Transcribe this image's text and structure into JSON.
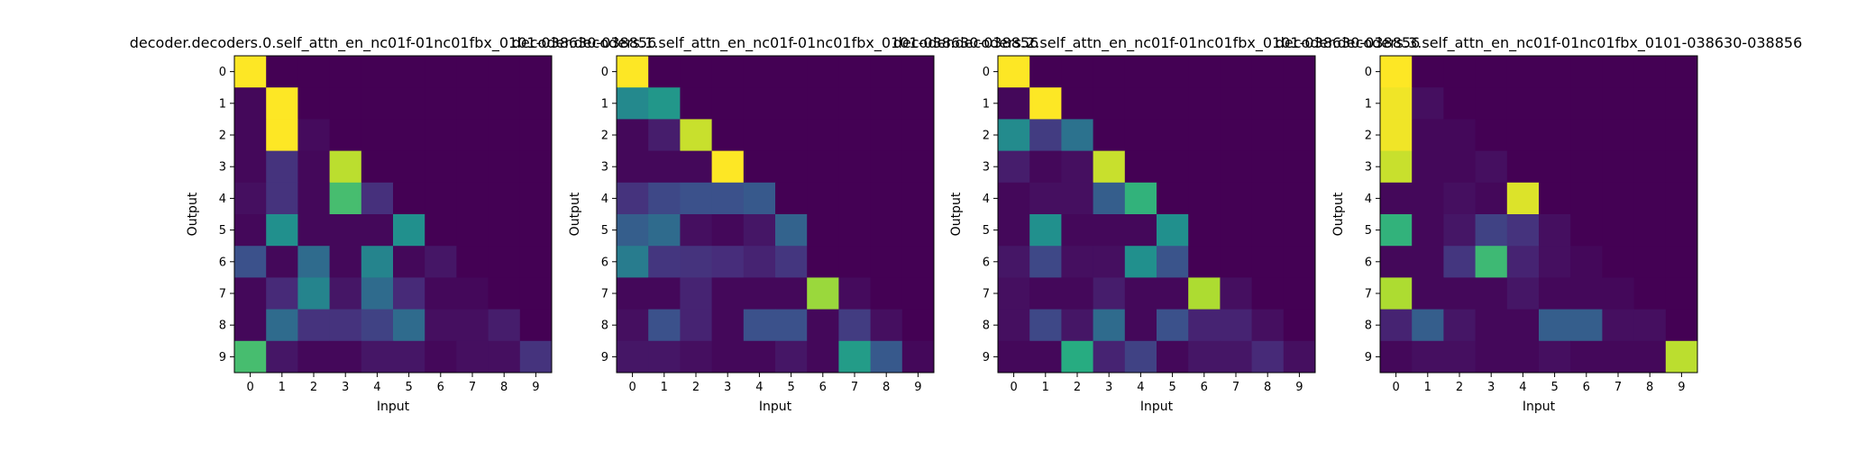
{
  "chart_data": [
    {
      "type": "heatmap",
      "title": "decoder.decoders.0.self_attn_en_nc01f-01nc01fbx_0101-038630-038856",
      "xlabel": "Input",
      "ylabel": "Output",
      "x_ticks": [
        "0",
        "1",
        "2",
        "3",
        "4",
        "5",
        "6",
        "7",
        "8",
        "9"
      ],
      "y_ticks": [
        "0",
        "1",
        "2",
        "3",
        "4",
        "5",
        "6",
        "7",
        "8",
        "9"
      ],
      "colormap": "viridis",
      "vrange": [
        0,
        1
      ],
      "values": [
        [
          1.0,
          0.0,
          0.0,
          0.0,
          0.0,
          0.0,
          0.0,
          0.0,
          0.0,
          0.0
        ],
        [
          0.02,
          1.0,
          0.0,
          0.0,
          0.0,
          0.0,
          0.0,
          0.0,
          0.0,
          0.0
        ],
        [
          0.02,
          1.0,
          0.03,
          0.0,
          0.0,
          0.0,
          0.0,
          0.0,
          0.0,
          0.0
        ],
        [
          0.02,
          0.15,
          0.02,
          0.9,
          0.0,
          0.0,
          0.0,
          0.0,
          0.0,
          0.0
        ],
        [
          0.04,
          0.15,
          0.02,
          0.7,
          0.14,
          0.0,
          0.0,
          0.0,
          0.0,
          0.0
        ],
        [
          0.02,
          0.5,
          0.02,
          0.02,
          0.02,
          0.5,
          0.0,
          0.0,
          0.0,
          0.0
        ],
        [
          0.25,
          0.02,
          0.35,
          0.02,
          0.45,
          0.02,
          0.06,
          0.0,
          0.0,
          0.0
        ],
        [
          0.02,
          0.12,
          0.45,
          0.06,
          0.35,
          0.12,
          0.02,
          0.02,
          0.0,
          0.0
        ],
        [
          0.02,
          0.35,
          0.15,
          0.15,
          0.2,
          0.35,
          0.04,
          0.04,
          0.08,
          0.0
        ],
        [
          0.7,
          0.06,
          0.02,
          0.02,
          0.06,
          0.06,
          0.02,
          0.04,
          0.04,
          0.15
        ]
      ]
    },
    {
      "type": "heatmap",
      "title": "decoder.decoders.1.self_attn_en_nc01f-01nc01fbx_0101-038630-038856",
      "xlabel": "Input",
      "ylabel": "Output",
      "x_ticks": [
        "0",
        "1",
        "2",
        "3",
        "4",
        "5",
        "6",
        "7",
        "8",
        "9"
      ],
      "y_ticks": [
        "0",
        "1",
        "2",
        "3",
        "4",
        "5",
        "6",
        "7",
        "8",
        "9"
      ],
      "colormap": "viridis",
      "vrange": [
        0,
        1
      ],
      "values": [
        [
          1.0,
          0.0,
          0.0,
          0.0,
          0.0,
          0.0,
          0.0,
          0.0,
          0.0,
          0.0
        ],
        [
          0.47,
          0.53,
          0.0,
          0.0,
          0.0,
          0.0,
          0.0,
          0.0,
          0.0,
          0.0
        ],
        [
          0.02,
          0.08,
          0.92,
          0.0,
          0.0,
          0.0,
          0.0,
          0.0,
          0.0,
          0.0
        ],
        [
          0.02,
          0.02,
          0.02,
          1.0,
          0.0,
          0.0,
          0.0,
          0.0,
          0.0,
          0.0
        ],
        [
          0.15,
          0.22,
          0.25,
          0.25,
          0.28,
          0.0,
          0.0,
          0.0,
          0.0,
          0.0
        ],
        [
          0.3,
          0.35,
          0.04,
          0.02,
          0.06,
          0.32,
          0.0,
          0.0,
          0.0,
          0.0
        ],
        [
          0.42,
          0.16,
          0.15,
          0.13,
          0.1,
          0.16,
          0.0,
          0.0,
          0.0,
          0.0
        ],
        [
          0.02,
          0.02,
          0.1,
          0.02,
          0.02,
          0.02,
          0.85,
          0.03,
          0.0,
          0.0
        ],
        [
          0.04,
          0.25,
          0.1,
          0.02,
          0.25,
          0.25,
          0.02,
          0.18,
          0.04,
          0.0
        ],
        [
          0.06,
          0.06,
          0.04,
          0.02,
          0.02,
          0.06,
          0.02,
          0.55,
          0.28,
          0.02
        ]
      ]
    },
    {
      "type": "heatmap",
      "title": "decoder.decoders.2.self_attn_en_nc01f-01nc01fbx_0101-038630-038856",
      "xlabel": "Input",
      "ylabel": "Output",
      "x_ticks": [
        "0",
        "1",
        "2",
        "3",
        "4",
        "5",
        "6",
        "7",
        "8",
        "9"
      ],
      "y_ticks": [
        "0",
        "1",
        "2",
        "3",
        "4",
        "5",
        "6",
        "7",
        "8",
        "9"
      ],
      "colormap": "viridis",
      "vrange": [
        0,
        1
      ],
      "values": [
        [
          1.0,
          0.0,
          0.0,
          0.0,
          0.0,
          0.0,
          0.0,
          0.0,
          0.0,
          0.0
        ],
        [
          0.02,
          1.0,
          0.0,
          0.0,
          0.0,
          0.0,
          0.0,
          0.0,
          0.0,
          0.0
        ],
        [
          0.48,
          0.18,
          0.38,
          0.0,
          0.0,
          0.0,
          0.0,
          0.0,
          0.0,
          0.0
        ],
        [
          0.08,
          0.02,
          0.04,
          0.92,
          0.0,
          0.0,
          0.0,
          0.0,
          0.0,
          0.0
        ],
        [
          0.02,
          0.04,
          0.04,
          0.3,
          0.65,
          0.0,
          0.0,
          0.0,
          0.0,
          0.0
        ],
        [
          0.02,
          0.5,
          0.02,
          0.02,
          0.02,
          0.5,
          0.0,
          0.0,
          0.0,
          0.0
        ],
        [
          0.06,
          0.22,
          0.04,
          0.04,
          0.5,
          0.26,
          0.0,
          0.0,
          0.0,
          0.0
        ],
        [
          0.04,
          0.02,
          0.02,
          0.08,
          0.02,
          0.02,
          0.88,
          0.04,
          0.0,
          0.0
        ],
        [
          0.04,
          0.22,
          0.06,
          0.35,
          0.02,
          0.25,
          0.1,
          0.1,
          0.04,
          0.0
        ],
        [
          0.02,
          0.02,
          0.62,
          0.1,
          0.2,
          0.02,
          0.06,
          0.06,
          0.12,
          0.04
        ]
      ]
    },
    {
      "type": "heatmap",
      "title": "decoder.decoders.3.self_attn_en_nc01f-01nc01fbx_0101-038630-038856",
      "xlabel": "Input",
      "ylabel": "Output",
      "x_ticks": [
        "0",
        "1",
        "2",
        "3",
        "4",
        "5",
        "6",
        "7",
        "8",
        "9"
      ],
      "y_ticks": [
        "0",
        "1",
        "2",
        "3",
        "4",
        "5",
        "6",
        "7",
        "8",
        "9"
      ],
      "colormap": "viridis",
      "vrange": [
        0,
        1
      ],
      "values": [
        [
          1.0,
          0.0,
          0.0,
          0.0,
          0.0,
          0.0,
          0.0,
          0.0,
          0.0,
          0.0
        ],
        [
          0.98,
          0.04,
          0.0,
          0.0,
          0.0,
          0.0,
          0.0,
          0.0,
          0.0,
          0.0
        ],
        [
          0.98,
          0.02,
          0.02,
          0.0,
          0.0,
          0.0,
          0.0,
          0.0,
          0.0,
          0.0
        ],
        [
          0.92,
          0.02,
          0.02,
          0.04,
          0.0,
          0.0,
          0.0,
          0.0,
          0.0,
          0.0
        ],
        [
          0.02,
          0.02,
          0.04,
          0.02,
          0.95,
          0.0,
          0.0,
          0.0,
          0.0,
          0.0
        ],
        [
          0.65,
          0.02,
          0.06,
          0.2,
          0.15,
          0.04,
          0.0,
          0.0,
          0.0,
          0.0
        ],
        [
          0.02,
          0.02,
          0.16,
          0.68,
          0.1,
          0.04,
          0.02,
          0.0,
          0.0,
          0.0
        ],
        [
          0.88,
          0.02,
          0.02,
          0.02,
          0.06,
          0.02,
          0.02,
          0.02,
          0.0,
          0.0
        ],
        [
          0.1,
          0.3,
          0.06,
          0.02,
          0.02,
          0.3,
          0.3,
          0.04,
          0.04,
          0.0
        ],
        [
          0.02,
          0.04,
          0.04,
          0.02,
          0.02,
          0.04,
          0.02,
          0.02,
          0.02,
          0.9
        ]
      ]
    }
  ]
}
